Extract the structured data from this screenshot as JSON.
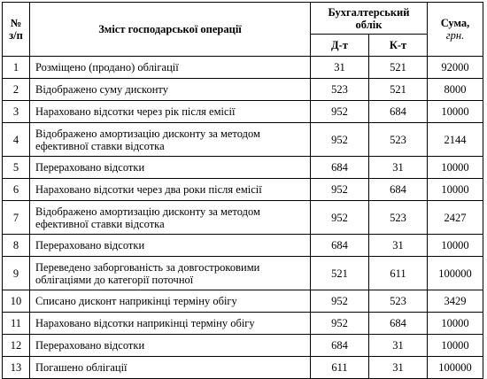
{
  "header": {
    "num": "№\nз/п",
    "content": "Зміст господарської операції",
    "accounting": "Бухгалтерський облік",
    "sum_label": "Сума,",
    "sum_unit": "грн.",
    "debit": "Д-т",
    "credit": "К-т"
  },
  "rows": [
    {
      "n": "1",
      "text": "Розміщено (продано) облігації",
      "dt": "31",
      "kt": "521",
      "sum": "92000"
    },
    {
      "n": "2",
      "text": "Відображено суму дисконту",
      "dt": "523",
      "kt": "521",
      "sum": "8000"
    },
    {
      "n": "3",
      "text": "Нараховано відсотки через рік після емісії",
      "dt": "952",
      "kt": "684",
      "sum": "10000"
    },
    {
      "n": "4",
      "text": "Відображено амортизацію дисконту за методом ефективної ставки відсотка",
      "dt": "952",
      "kt": "523",
      "sum": "2144"
    },
    {
      "n": "5",
      "text": "Перераховано відсотки",
      "dt": "684",
      "kt": "31",
      "sum": "10000"
    },
    {
      "n": "6",
      "text": "Нараховано відсотки через два роки після емісії",
      "dt": "952",
      "kt": "684",
      "sum": "10000"
    },
    {
      "n": "7",
      "text": "Відображено амортизацію дисконту за методом ефективної ставки відсотка",
      "dt": "952",
      "kt": "523",
      "sum": "2427"
    },
    {
      "n": "8",
      "text": "Перераховано відсотки",
      "dt": "684",
      "kt": "31",
      "sum": "10000"
    },
    {
      "n": "9",
      "text": "Переведено заборгованість за довгостроковими облігаціями до категорії поточної",
      "dt": "521",
      "kt": "611",
      "sum": "100000"
    },
    {
      "n": "10",
      "text": "Списано дисконт наприкінці терміну обігу",
      "dt": "952",
      "kt": "523",
      "sum": "3429"
    },
    {
      "n": "11",
      "text": "Нараховано відсотки наприкінці терміну обігу",
      "dt": "952",
      "kt": "684",
      "sum": "10000"
    },
    {
      "n": "12",
      "text": "Перераховано відсотки",
      "dt": "684",
      "kt": "31",
      "sum": "10000"
    },
    {
      "n": "13",
      "text": "Погашено облігації",
      "dt": "611",
      "kt": "31",
      "sum": "100000"
    }
  ]
}
